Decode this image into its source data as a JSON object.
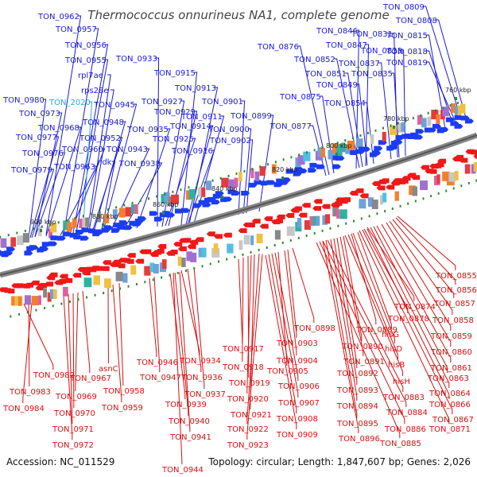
{
  "title": "Thermococcus onnurineus NA1, complete genome",
  "accession_label": "Accession: NC_011529",
  "topology_label": "Topology: circular; Length: 1,847,607 bp; Genes: 2,026",
  "colors": {
    "top_label": "#1a1ad8",
    "bottom_label": "#d81010",
    "highlight_label": "#2aa8d8",
    "backbone": "#777777",
    "tick": "#2e8b2e"
  },
  "ruler": [
    "760 kbp",
    "780 kbp",
    "800 kbp",
    "820 kbp",
    "840 kbp",
    "860 kbp",
    "880 kbp",
    "900 kbp"
  ],
  "top_labels": [
    {
      "text": "TON_0962",
      "highlight": false
    },
    {
      "text": "TON_0957",
      "highlight": false
    },
    {
      "text": "TON_0956",
      "highlight": false
    },
    {
      "text": "TON_0955",
      "highlight": false
    },
    {
      "text": "rpl7ae",
      "highlight": false
    },
    {
      "text": "rps28e",
      "highlight": false
    },
    {
      "text": "TON_0980",
      "highlight": false
    },
    {
      "text": "TON_2020",
      "highlight": true
    },
    {
      "text": "TON_0945",
      "highlight": false
    },
    {
      "text": "TON_0973",
      "highlight": false
    },
    {
      "text": "TON_0948",
      "highlight": false
    },
    {
      "text": "TON_0968",
      "highlight": false
    },
    {
      "text": "TON_0952",
      "highlight": false
    },
    {
      "text": "TON_0977",
      "highlight": false
    },
    {
      "text": "TON_0960",
      "highlight": false
    },
    {
      "text": "TON_0943",
      "highlight": false
    },
    {
      "text": "TON_0976",
      "highlight": false
    },
    {
      "text": "ndk",
      "highlight": false
    },
    {
      "text": "TON_0963",
      "highlight": false
    },
    {
      "text": "TON_0938",
      "highlight": false
    },
    {
      "text": "TON_0979",
      "highlight": false
    },
    {
      "text": "TON_0933",
      "highlight": false
    },
    {
      "text": "TON_0915",
      "highlight": false
    },
    {
      "text": "TON_0913",
      "highlight": false
    },
    {
      "text": "TON_0927",
      "highlight": false
    },
    {
      "text": "TON_0929",
      "highlight": false
    },
    {
      "text": "TON_0911",
      "highlight": false
    },
    {
      "text": "TON_0935",
      "highlight": false
    },
    {
      "text": "TON_0914",
      "highlight": false
    },
    {
      "text": "TON_0925",
      "highlight": false
    },
    {
      "text": "TON_0916",
      "highlight": false
    },
    {
      "text": "TON_0901",
      "highlight": false
    },
    {
      "text": "TON_0899",
      "highlight": false
    },
    {
      "text": "TON_0900",
      "highlight": false
    },
    {
      "text": "TON_0902",
      "highlight": false
    },
    {
      "text": "TON_0876",
      "highlight": false
    },
    {
      "text": "TON_0875",
      "highlight": false
    },
    {
      "text": "TON_0877",
      "highlight": false
    },
    {
      "text": "TON_0846",
      "highlight": false
    },
    {
      "text": "TON_0847",
      "highlight": false
    },
    {
      "text": "TON_0852",
      "highlight": false
    },
    {
      "text": "TON_0851",
      "highlight": false
    },
    {
      "text": "TON_0849",
      "highlight": false
    },
    {
      "text": "TON_0854",
      "highlight": false
    },
    {
      "text": "TON_0831",
      "highlight": false
    },
    {
      "text": "TON_0833",
      "highlight": false
    },
    {
      "text": "TON_0837",
      "highlight": false
    },
    {
      "text": "TON_0835",
      "highlight": false
    },
    {
      "text": "TON_0809",
      "highlight": false
    },
    {
      "text": "TON_0808",
      "highlight": false
    },
    {
      "text": "TON_0815",
      "highlight": false
    },
    {
      "text": "TON_0818",
      "highlight": false
    },
    {
      "text": "TON_0819",
      "highlight": false
    }
  ],
  "bottom_labels": [
    {
      "text": "TON_0855"
    },
    {
      "text": "TON_0856"
    },
    {
      "text": "TON_0857"
    },
    {
      "text": "TON_0858"
    },
    {
      "text": "TON_0874"
    },
    {
      "text": "TON_0878"
    },
    {
      "text": "TON_0859"
    },
    {
      "text": "TON_0898"
    },
    {
      "text": "TON_0889"
    },
    {
      "text": "hisG"
    },
    {
      "text": "TON_0903"
    },
    {
      "text": "TON_0890"
    },
    {
      "text": "hisD"
    },
    {
      "text": "TON_0860"
    },
    {
      "text": "TON_0917"
    },
    {
      "text": "TON_0891"
    },
    {
      "text": "hisB"
    },
    {
      "text": "TON_0861"
    },
    {
      "text": "TON_0946"
    },
    {
      "text": "TON_0934"
    },
    {
      "text": "TON_0904"
    },
    {
      "text": "TON_0918"
    },
    {
      "text": "TON_0905"
    },
    {
      "text": "TON_0892"
    },
    {
      "text": "TON_0863"
    },
    {
      "text": "asnC"
    },
    {
      "text": "TON_0982"
    },
    {
      "text": "TON_0967"
    },
    {
      "text": "TON_0947"
    },
    {
      "text": "TON_0936"
    },
    {
      "text": "hisH"
    },
    {
      "text": "TON_0919"
    },
    {
      "text": "TON_0906"
    },
    {
      "text": "TON_0893"
    },
    {
      "text": "TON_0983"
    },
    {
      "text": "TON_0958"
    },
    {
      "text": "TON_0937"
    },
    {
      "text": "TON_0864"
    },
    {
      "text": "TON_0969"
    },
    {
      "text": "TON_0920"
    },
    {
      "text": "TON_0883"
    },
    {
      "text": "TON_0907"
    },
    {
      "text": "TON_0939"
    },
    {
      "text": "TON_0866"
    },
    {
      "text": "TON_0984"
    },
    {
      "text": "TON_0959"
    },
    {
      "text": "TON_0894"
    },
    {
      "text": "TON_0970"
    },
    {
      "text": "TON_0921"
    },
    {
      "text": "TON_0884"
    },
    {
      "text": "TON_0908"
    },
    {
      "text": "TON_0867"
    },
    {
      "text": "TON_0940"
    },
    {
      "text": "TON_0895"
    },
    {
      "text": "TON_0871"
    },
    {
      "text": "TON_0971"
    },
    {
      "text": "TON_0922"
    },
    {
      "text": "TON_0886"
    },
    {
      "text": "TON_0909"
    },
    {
      "text": "TON_0896"
    },
    {
      "text": "TON_0941"
    },
    {
      "text": "TON_0885"
    },
    {
      "text": "TON_0972"
    },
    {
      "text": "TON_0923"
    },
    {
      "text": "TON_0944"
    }
  ]
}
